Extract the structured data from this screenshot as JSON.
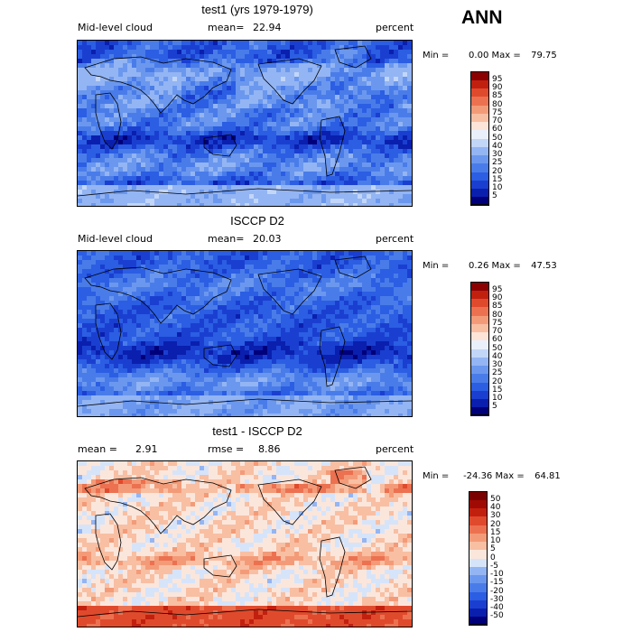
{
  "season": "ANN",
  "chart_data": [
    {
      "type": "heatmap",
      "title": "test1 (yrs 1979-1979)",
      "variable": "Mid-level cloud",
      "mean_label": "mean=",
      "mean": "22.94",
      "units": "percent",
      "min_label": "Min =",
      "min": "0.00",
      "max_label": "Max =",
      "max": "79.75",
      "levels": [
        "5",
        "10",
        "15",
        "20",
        "25",
        "30",
        "40",
        "50",
        "60",
        "70",
        "75",
        "80",
        "85",
        "90",
        "95"
      ],
      "colors": [
        "#00007a",
        "#0a1fae",
        "#1a3fd0",
        "#2b5ee3",
        "#4a7ce9",
        "#6b98ee",
        "#94b5f3",
        "#c2d6f8",
        "#e9f0fc",
        "#fde4d8",
        "#f8bfa3",
        "#f39b78",
        "#ec7150",
        "#e04a2c",
        "#c2200f",
        "#8b0000"
      ],
      "field": "model"
    },
    {
      "type": "heatmap",
      "title": "ISCCP D2",
      "variable": "Mid-level cloud",
      "mean_label": "mean=",
      "mean": "20.03",
      "units": "percent",
      "min_label": "Min =",
      "min": "0.26",
      "max_label": "Max =",
      "max": "47.53",
      "levels": [
        "5",
        "10",
        "15",
        "20",
        "25",
        "30",
        "40",
        "50",
        "60",
        "70",
        "75",
        "80",
        "85",
        "90",
        "95"
      ],
      "colors": [
        "#00007a",
        "#0a1fae",
        "#1a3fd0",
        "#2b5ee3",
        "#4a7ce9",
        "#6b98ee",
        "#94b5f3",
        "#c2d6f8",
        "#e9f0fc",
        "#fde4d8",
        "#f8bfa3",
        "#f39b78",
        "#ec7150",
        "#e04a2c",
        "#c2200f",
        "#8b0000"
      ],
      "field": "obs"
    },
    {
      "type": "heatmap",
      "title": "test1 - ISCCP D2",
      "mean_label": "mean =",
      "mean": "2.91",
      "rmse_label": "rmse =",
      "rmse": "8.86",
      "units": "percent",
      "min_label": "Min =",
      "min": "-24.36",
      "max_label": "Max =",
      "max": "64.81",
      "levels": [
        "-50",
        "-40",
        "-30",
        "-20",
        "-15",
        "-10",
        "-5",
        "0",
        "5",
        "10",
        "15",
        "20",
        "30",
        "40",
        "50"
      ],
      "colors": [
        "#00007a",
        "#0a1fae",
        "#1a3fd0",
        "#2b5ee3",
        "#4a7ce9",
        "#6b98ee",
        "#94b5f3",
        "#d6e4fa",
        "#fbe6dc",
        "#f8bfa3",
        "#f39b78",
        "#ec7150",
        "#e04a2c",
        "#c2200f",
        "#a00a05",
        "#7a0000"
      ],
      "field": "diff"
    }
  ]
}
